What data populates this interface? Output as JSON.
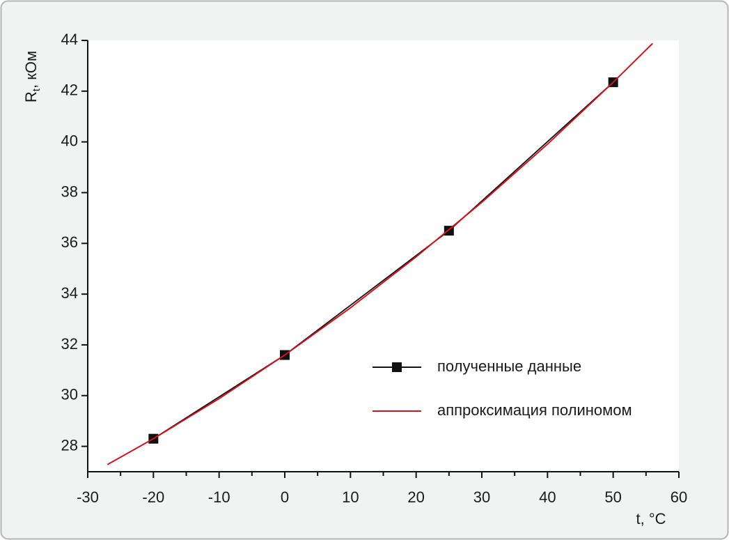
{
  "chart_data": {
    "type": "line",
    "x_label": "t, °C",
    "y_label": [
      "R",
      "t",
      ", кОм"
    ],
    "xlim": [
      -30,
      60
    ],
    "xticks": [
      -30,
      -20,
      -10,
      0,
      10,
      20,
      30,
      40,
      50,
      60
    ],
    "ylim": [
      27,
      44
    ],
    "yticks": [
      28,
      30,
      32,
      34,
      36,
      38,
      40,
      42,
      44
    ],
    "legend": "lower right",
    "series": [
      {
        "name": "полученные данные",
        "color": "#111111",
        "marker": "square",
        "x": [
          -20,
          0,
          25,
          50
        ],
        "values": [
          28.3,
          31.6,
          36.5,
          42.35
        ]
      },
      {
        "name": "аппроксимация полиномом",
        "color": "#d0141e",
        "marker": "none",
        "x": [
          -27,
          -20,
          -10,
          0,
          10,
          20,
          30,
          40,
          50,
          56
        ],
        "values": [
          27.28,
          28.3,
          29.88,
          31.6,
          33.46,
          35.47,
          37.62,
          39.91,
          42.35,
          43.88
        ]
      }
    ]
  }
}
